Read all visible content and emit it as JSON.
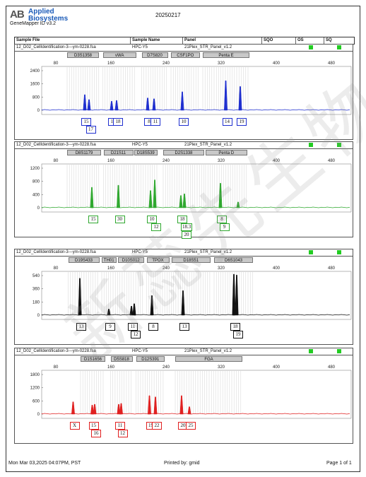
{
  "app": {
    "logo_mark": "AB",
    "logo_name": "Applied Biosystems",
    "version": "GeneMapper ID v3.2"
  },
  "report_date": "20250217",
  "header": {
    "sample_file": "Sample File",
    "sample_name": "Sample Name",
    "panel": "Panel",
    "sqo": "SQO",
    "os": "OS",
    "sq": "SQ"
  },
  "watermark": "新蕊先生物",
  "footer": {
    "printed_on": "Mon Mar 03,2025 04:07PM, PST",
    "printed_by": "Printed by: gmid",
    "page": "Page 1 of 1"
  },
  "panels": [
    {
      "sample_file": "12_D02_CellIdentification-3---ym-0228.fsa",
      "sample_name": "HPC-Y5",
      "panel_name": "21Plex_STR_Panel_v1.2",
      "color": "#1f2fcf",
      "markers": [
        {
          "label": "D3S1358",
          "x0": 100,
          "x1": 190
        },
        {
          "label": "vWA",
          "x0": 201,
          "x1": 296
        },
        {
          "label": "D7S820",
          "x0": 311,
          "x1": 385
        },
        {
          "label": "CSF1PO",
          "x0": 394,
          "x1": 475
        },
        {
          "label": "Penta E",
          "x0": 484,
          "x1": 616
        }
      ],
      "y_ticks": [
        "2400",
        "1600",
        "800",
        "0"
      ],
      "x_ticks": [
        "80",
        "160",
        "240",
        "320",
        "400",
        "480"
      ],
      "peaks": [
        {
          "x": 150,
          "h": 0.38
        },
        {
          "x": 162,
          "h": 0.26
        },
        {
          "x": 226,
          "h": 0.22
        },
        {
          "x": 240,
          "h": 0.24
        },
        {
          "x": 328,
          "h": 0.3
        },
        {
          "x": 346,
          "h": 0.28
        },
        {
          "x": 426,
          "h": 0.45
        },
        {
          "x": 549,
          "h": 0.72
        },
        {
          "x": 590,
          "h": 0.58
        }
      ],
      "alleles": [
        {
          "x": 150,
          "label": "15",
          "row": 0
        },
        {
          "x": 163,
          "label": "17",
          "row": 1
        },
        {
          "x": 226,
          "label": "14",
          "row": 0
        },
        {
          "x": 240,
          "label": "18",
          "row": 0
        },
        {
          "x": 328,
          "label": "8",
          "row": 0
        },
        {
          "x": 346,
          "label": "11",
          "row": 0
        },
        {
          "x": 426,
          "label": "10",
          "row": 0
        },
        {
          "x": 549,
          "label": "14",
          "row": 0
        },
        {
          "x": 590,
          "label": "19",
          "row": 0
        }
      ]
    },
    {
      "sample_file": "12_D02_CellIdentification-3---ym-0228.fsa",
      "sample_name": "HPC-Y5",
      "panel_name": "21Plex_STR_Panel_v1.2",
      "color": "#2fa82f",
      "markers": [
        {
          "label": "D8S1179",
          "x0": 100,
          "x1": 196
        },
        {
          "label": "D21S11",
          "x0": 203,
          "x1": 287
        },
        {
          "label": "D18S539",
          "x0": 290,
          "x1": 355
        },
        {
          "label": "D2S1338",
          "x0": 372,
          "x1": 488
        },
        {
          "label": "Penta D",
          "x0": 492,
          "x1": 609
        }
      ],
      "y_ticks": [
        "1200",
        "800",
        "400",
        "0"
      ],
      "x_ticks": [
        "80",
        "160",
        "240",
        "320",
        "400",
        "480"
      ],
      "peaks": [
        {
          "x": 170,
          "h": 0.5
        },
        {
          "x": 245,
          "h": 0.55
        },
        {
          "x": 336,
          "h": 0.42
        },
        {
          "x": 348,
          "h": 0.68
        },
        {
          "x": 422,
          "h": 0.3
        },
        {
          "x": 432,
          "h": 0.34
        },
        {
          "x": 534,
          "h": 0.6
        },
        {
          "x": 584,
          "h": 0.14
        }
      ],
      "alleles": [
        {
          "x": 170,
          "label": "15",
          "row": 0
        },
        {
          "x": 245,
          "label": "30",
          "row": 0
        },
        {
          "x": 336,
          "label": "10",
          "row": 0
        },
        {
          "x": 348,
          "label": "12",
          "row": 1
        },
        {
          "x": 422,
          "label": "18",
          "row": 0
        },
        {
          "x": 432,
          "label": "18.3",
          "row": 1
        },
        {
          "x": 434,
          "label": "20",
          "row": 2
        },
        {
          "x": 534,
          "label": "8",
          "row": 0
        },
        {
          "x": 541,
          "label": "9",
          "row": 1
        }
      ]
    },
    {
      "sample_file": "12_D02_CellIdentification-3---ym-0228.fsa",
      "sample_name": "HPC-Y5",
      "panel_name": "21Plex_STR_Panel_v1.2",
      "color": "#111111",
      "markers": [
        {
          "label": "D19S433",
          "x0": 103,
          "x1": 191
        },
        {
          "label": "TH01",
          "x0": 198,
          "x1": 239
        },
        {
          "label": "D10S012",
          "x0": 243,
          "x1": 318
        },
        {
          "label": "TPOX",
          "x0": 325,
          "x1": 389
        },
        {
          "label": "D18S51",
          "x0": 395,
          "x1": 506
        },
        {
          "label": "D6S1043",
          "x0": 516,
          "x1": 626
        }
      ],
      "y_ticks": [
        "540",
        "360",
        "180",
        "0"
      ],
      "x_ticks": [
        "80",
        "160",
        "240",
        "320",
        "400",
        "480"
      ],
      "peaks": [
        {
          "x": 136,
          "h": 0.9
        },
        {
          "x": 218,
          "h": 0.15
        },
        {
          "x": 282,
          "h": 0.22
        },
        {
          "x": 290,
          "h": 0.28
        },
        {
          "x": 340,
          "h": 0.48
        },
        {
          "x": 428,
          "h": 0.6
        },
        {
          "x": 572,
          "h": 1.0
        },
        {
          "x": 580,
          "h": 0.98
        }
      ],
      "alleles": [
        {
          "x": 136,
          "label": "13",
          "row": 0
        },
        {
          "x": 218,
          "label": "9",
          "row": 0
        },
        {
          "x": 282,
          "label": "11",
          "row": 0
        },
        {
          "x": 290,
          "label": "12",
          "row": 1
        },
        {
          "x": 340,
          "label": "8",
          "row": 0
        },
        {
          "x": 428,
          "label": "13",
          "row": 0
        },
        {
          "x": 572,
          "label": "18",
          "row": 0
        },
        {
          "x": 580,
          "label": "19",
          "row": 1
        }
      ]
    },
    {
      "sample_file": "12_D02_CellIdentification-3---ym-0228.fsa",
      "sample_name": "HPC-Y5",
      "panel_name": "21Plex_STR_Panel_v1.2",
      "color": "#e02020",
      "markers": [
        {
          "label": "D1S1656",
          "x0": 138,
          "x1": 208
        },
        {
          "label": "D5S818",
          "x0": 223,
          "x1": 285
        },
        {
          "label": "D12S391",
          "x0": 295,
          "x1": 376
        },
        {
          "label": "FGA",
          "x0": 406,
          "x1": 596
        }
      ],
      "y_ticks": [
        "1800",
        "1200",
        "600",
        "0"
      ],
      "x_ticks": [
        "80",
        "160",
        "240",
        "320",
        "400",
        "480"
      ],
      "peaks": [
        {
          "x": 117,
          "h": 0.3
        },
        {
          "x": 171,
          "h": 0.22
        },
        {
          "x": 178,
          "h": 0.24
        },
        {
          "x": 246,
          "h": 0.24
        },
        {
          "x": 253,
          "h": 0.26
        },
        {
          "x": 333,
          "h": 0.45
        },
        {
          "x": 350,
          "h": 0.42
        },
        {
          "x": 424,
          "h": 0.45
        },
        {
          "x": 446,
          "h": 0.18
        }
      ],
      "alleles": [
        {
          "x": 117,
          "label": "X",
          "row": 0
        },
        {
          "x": 171,
          "label": "15",
          "row": 0
        },
        {
          "x": 178,
          "label": "16",
          "row": 1
        },
        {
          "x": 246,
          "label": "11",
          "row": 0
        },
        {
          "x": 253,
          "label": "12",
          "row": 1
        },
        {
          "x": 333,
          "label": "19",
          "row": 0
        },
        {
          "x": 350,
          "label": "22",
          "row": 0
        },
        {
          "x": 424,
          "label": "20",
          "row": 0
        },
        {
          "x": 446,
          "label": "25",
          "row": 0
        }
      ]
    }
  ]
}
